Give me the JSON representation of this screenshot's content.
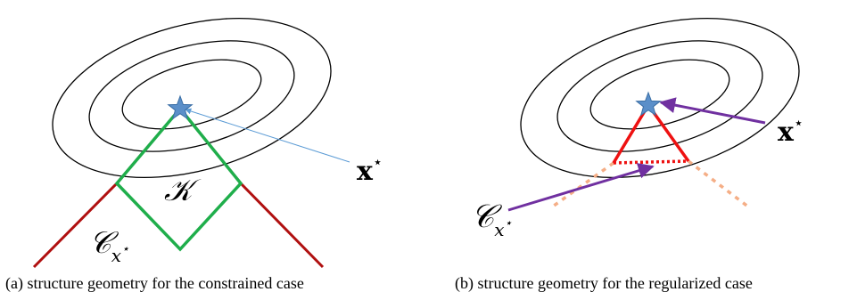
{
  "panel_a": {
    "caption": "(a) structure geometry for the constrained case",
    "label_x_star": {
      "base": "x",
      "sup": "⋆"
    },
    "label_K": "𝒦",
    "label_C": {
      "base": "𝒞",
      "sub": "x",
      "subsup": "⋆"
    }
  },
  "panel_b": {
    "caption": "(b) structure geometry for the regularized case",
    "label_x_star": {
      "base": "x",
      "sup": "⋆"
    },
    "label_C": {
      "base": "𝒞",
      "sub": "x",
      "subsup": "⋆"
    }
  },
  "colors": {
    "contour": "#000000",
    "green": "#1fae4b",
    "dark_red": "#b01010",
    "red": "#ee1111",
    "orange_dashed": "#f5ae86",
    "purple": "#7030a0",
    "light_blue": "#5b9bd5",
    "star_fill": "#5b8fc9",
    "star_stroke": "#3a6ea5"
  }
}
